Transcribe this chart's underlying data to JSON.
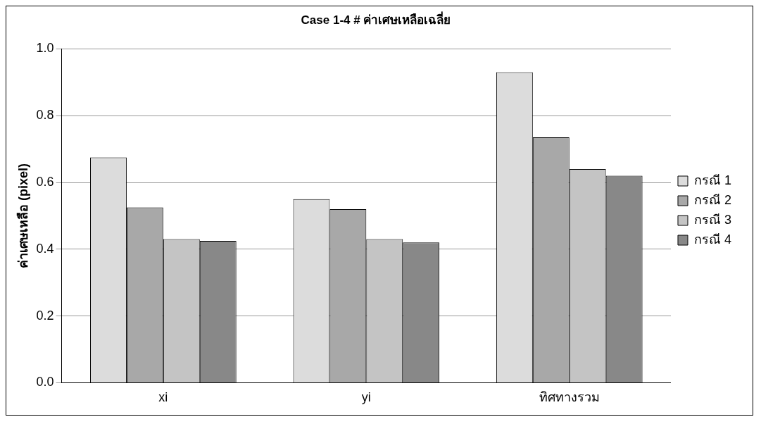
{
  "chart_data": {
    "type": "bar",
    "title": "Case 1-4 # ค่าเศษเหลือเฉลี่ย",
    "ylabel": "ค่าเศษเหลือ (pixel)",
    "categories": [
      "xi",
      "yi",
      "ทิศทางรวม"
    ],
    "series": [
      {
        "name": "กรณี 1",
        "color": "#dcdcdc",
        "values": [
          0.675,
          0.55,
          0.93
        ]
      },
      {
        "name": "กรณี 2",
        "color": "#a8a8a8",
        "values": [
          0.525,
          0.52,
          0.735
        ]
      },
      {
        "name": "กรณี 3",
        "color": "#c4c4c4",
        "values": [
          0.43,
          0.43,
          0.64
        ]
      },
      {
        "name": "กรณี 4",
        "color": "#888888",
        "values": [
          0.425,
          0.42,
          0.62
        ]
      }
    ],
    "ylim": [
      0,
      1
    ],
    "yticks": [
      {
        "value": 0,
        "label": "0.0"
      },
      {
        "value": 0.2,
        "label": "0.2"
      },
      {
        "value": 0.4,
        "label": "0.4"
      },
      {
        "value": 0.6,
        "label": "0.6"
      },
      {
        "value": 0.8,
        "label": "0.8"
      },
      {
        "value": 1,
        "label": "1.0"
      }
    ],
    "grid": "y",
    "legend": "right"
  }
}
